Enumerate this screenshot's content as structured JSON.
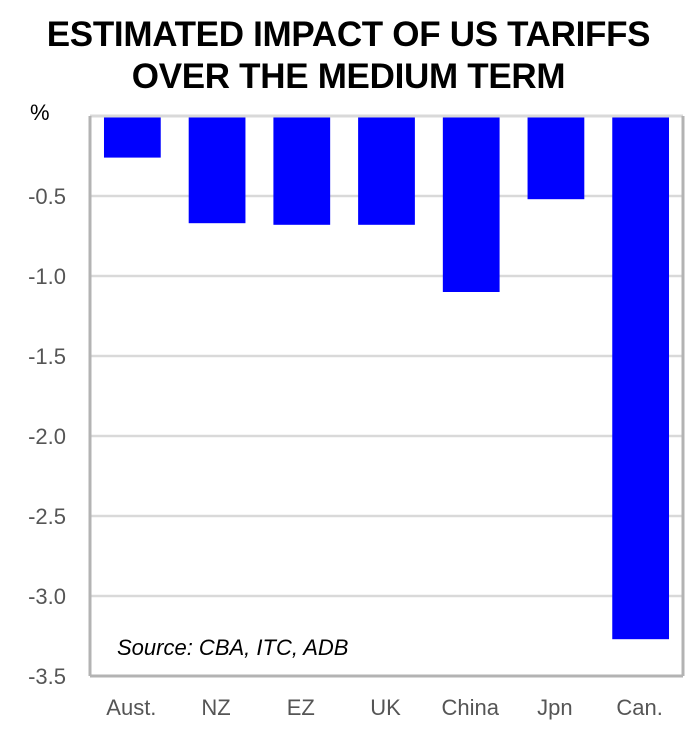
{
  "chart_data": {
    "type": "bar",
    "title": "ESTIMATED IMPACT OF US TARIFFS OVER THE MEDIUM TERM",
    "title_lines": [
      "ESTIMATED IMPACT OF US TARIFFS",
      "OVER THE MEDIUM TERM"
    ],
    "ylabel": "%",
    "xlabel": "",
    "categories": [
      "Aust.",
      "NZ",
      "EZ",
      "UK",
      "China",
      "Jpn",
      "Can."
    ],
    "values": [
      -0.26,
      -0.67,
      -0.68,
      -0.68,
      -1.1,
      -0.52,
      -3.27
    ],
    "ylim": [
      -3.5,
      0
    ],
    "yticks": [
      -0.5,
      -1.0,
      -1.5,
      -2.0,
      -2.5,
      -3.0,
      -3.5
    ],
    "ytick_labels": [
      "-0.5",
      "-1.0",
      "-1.5",
      "-2.0",
      "-2.5",
      "-3.0",
      "-3.5"
    ],
    "grid": true,
    "bar_color": "#0000ff",
    "annotation": "Source: CBA, ITC, ADB",
    "legend": "none"
  }
}
